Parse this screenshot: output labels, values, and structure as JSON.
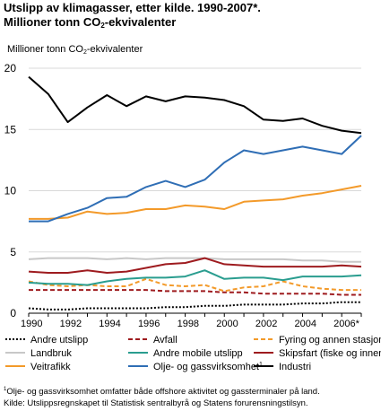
{
  "title_line1": "Utslipp av klimagasser, etter kilde. 1990-2007*.",
  "title_line2_pre": "Millioner tonn CO",
  "title_line2_sub": "2",
  "title_line2_post": "-ekvivalenter",
  "footnote_sup": "1",
  "footnote_line1": "Olje- og gassvirksomhet omfatter både offshore aktivitet og gassterminaler på land.",
  "footnote_line2": "Kilde: Utslippsregnskapet til Statistisk sentralbyrå og Statens forurensningstilsyn.",
  "chart_data": {
    "type": "line",
    "ylabel_pre": "Millioner tonn CO",
    "ylabel_sub": "2",
    "ylabel_post": "-ekvivalenter",
    "ylim": [
      0,
      20
    ],
    "yticks": [
      0,
      5,
      10,
      15,
      20
    ],
    "x": [
      1990,
      1991,
      1992,
      1993,
      1994,
      1995,
      1996,
      1997,
      1998,
      1999,
      2000,
      2001,
      2002,
      2003,
      2004,
      2005,
      2006,
      2007
    ],
    "xticks": [
      {
        "x": 1990,
        "label": "1990"
      },
      {
        "x": 1992,
        "label": "1992"
      },
      {
        "x": 1994,
        "label": "1994"
      },
      {
        "x": 1996,
        "label": "1996"
      },
      {
        "x": 1998,
        "label": "1998"
      },
      {
        "x": 2000,
        "label": "2000"
      },
      {
        "x": 2002,
        "label": "2002"
      },
      {
        "x": 2004,
        "label": "2004"
      },
      {
        "x": 2006,
        "label": "2006*"
      }
    ],
    "grid": "horizontal",
    "legend_position": "bottom",
    "series": [
      {
        "name": "Andre utslipp",
        "color": "#000000",
        "dash": "2,2",
        "values": [
          0.4,
          0.3,
          0.3,
          0.4,
          0.4,
          0.4,
          0.4,
          0.5,
          0.5,
          0.6,
          0.6,
          0.7,
          0.7,
          0.7,
          0.8,
          0.8,
          0.9,
          0.9
        ]
      },
      {
        "name": "Avfall",
        "color": "#9e1b1f",
        "dash": "5,3",
        "values": [
          1.9,
          1.9,
          1.9,
          1.9,
          1.9,
          1.9,
          1.9,
          1.8,
          1.8,
          1.8,
          1.7,
          1.7,
          1.6,
          1.6,
          1.6,
          1.6,
          1.5,
          1.5
        ]
      },
      {
        "name": "Fyring og annen stasjonær forbrenning",
        "color": "#f39a2a",
        "dash": "5,3",
        "values": [
          2.6,
          2.3,
          2.2,
          2.3,
          2.2,
          2.2,
          2.8,
          2.3,
          2.2,
          2.3,
          1.8,
          2.1,
          2.2,
          2.6,
          2.2,
          2.0,
          1.9,
          1.9
        ]
      },
      {
        "name": "Landbruk",
        "color": "#c8c8c8",
        "dash": "",
        "values": [
          4.4,
          4.5,
          4.5,
          4.5,
          4.4,
          4.5,
          4.4,
          4.5,
          4.5,
          4.5,
          4.4,
          4.4,
          4.4,
          4.4,
          4.3,
          4.3,
          4.2,
          4.2
        ]
      },
      {
        "name": "Andre mobile utslipp",
        "color": "#2a9d8f",
        "dash": "",
        "values": [
          2.5,
          2.4,
          2.4,
          2.3,
          2.6,
          2.8,
          2.9,
          2.9,
          3.0,
          3.5,
          2.8,
          2.9,
          2.9,
          2.7,
          3.0,
          3.0,
          3.0,
          3.1
        ]
      },
      {
        "name": "Skipsfart (fiske og innenriks)",
        "color": "#9e1b1f",
        "dash": "",
        "values": [
          3.4,
          3.3,
          3.3,
          3.5,
          3.3,
          3.4,
          3.7,
          4.0,
          4.1,
          4.5,
          4.0,
          3.9,
          3.8,
          3.8,
          3.8,
          3.8,
          3.9,
          3.8
        ]
      },
      {
        "name": "Veitrafikk",
        "color": "#f39a2a",
        "dash": "",
        "values": [
          7.7,
          7.7,
          7.8,
          8.3,
          8.1,
          8.2,
          8.5,
          8.5,
          8.8,
          8.7,
          8.5,
          9.1,
          9.2,
          9.3,
          9.6,
          9.8,
          10.1,
          10.4
        ]
      },
      {
        "name": "Olje- og gassvirksomhet",
        "name_sup": "1",
        "color": "#2f6eb5",
        "dash": "",
        "values": [
          7.5,
          7.5,
          8.1,
          8.6,
          9.4,
          9.5,
          10.3,
          10.8,
          10.3,
          10.9,
          12.3,
          13.3,
          13.0,
          13.3,
          13.6,
          13.3,
          13.0,
          14.5
        ]
      },
      {
        "name": "Industri",
        "color": "#000000",
        "dash": "",
        "values": [
          19.3,
          17.9,
          15.6,
          16.8,
          17.8,
          16.9,
          17.7,
          17.3,
          17.7,
          17.6,
          17.4,
          16.9,
          15.8,
          15.7,
          15.9,
          15.3,
          14.9,
          14.7
        ]
      }
    ]
  }
}
